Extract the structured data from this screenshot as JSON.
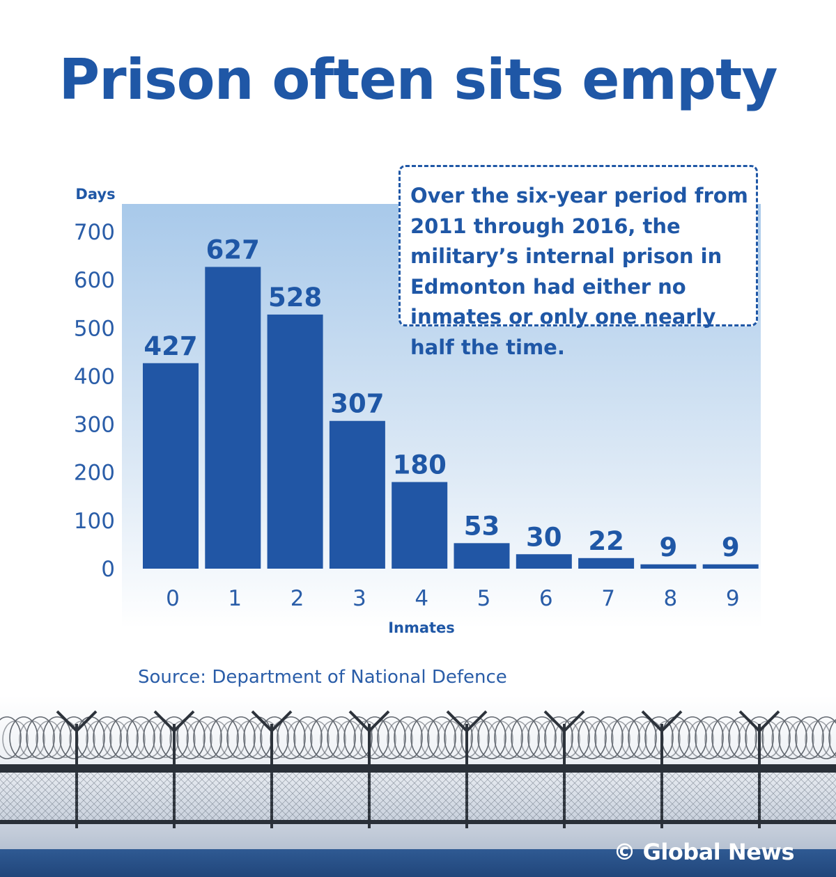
{
  "title": "Prison often sits empty",
  "callout": "Over the six-year period from 2011 through 2016, the military’s internal prison in Edmonton had either no inmates or only one nearly half the time.",
  "source": "Source: Department of National Defence",
  "logo": "© Global News",
  "colors": {
    "bar": "#2156a5",
    "text": "#1f57a6",
    "panel_top": "#a8c9ea"
  },
  "chart_data": {
    "type": "bar",
    "title": "Prison often sits empty",
    "xlabel": "Inmates",
    "ylabel": "Days",
    "categories": [
      "0",
      "1",
      "2",
      "3",
      "4",
      "5",
      "6",
      "7",
      "8",
      "9"
    ],
    "values": [
      427,
      627,
      528,
      307,
      180,
      53,
      30,
      22,
      9,
      9
    ],
    "ylim": [
      0,
      700
    ],
    "yticks": [
      0,
      100,
      200,
      300,
      400,
      500,
      600,
      700
    ],
    "grid": false,
    "legend": "none"
  }
}
